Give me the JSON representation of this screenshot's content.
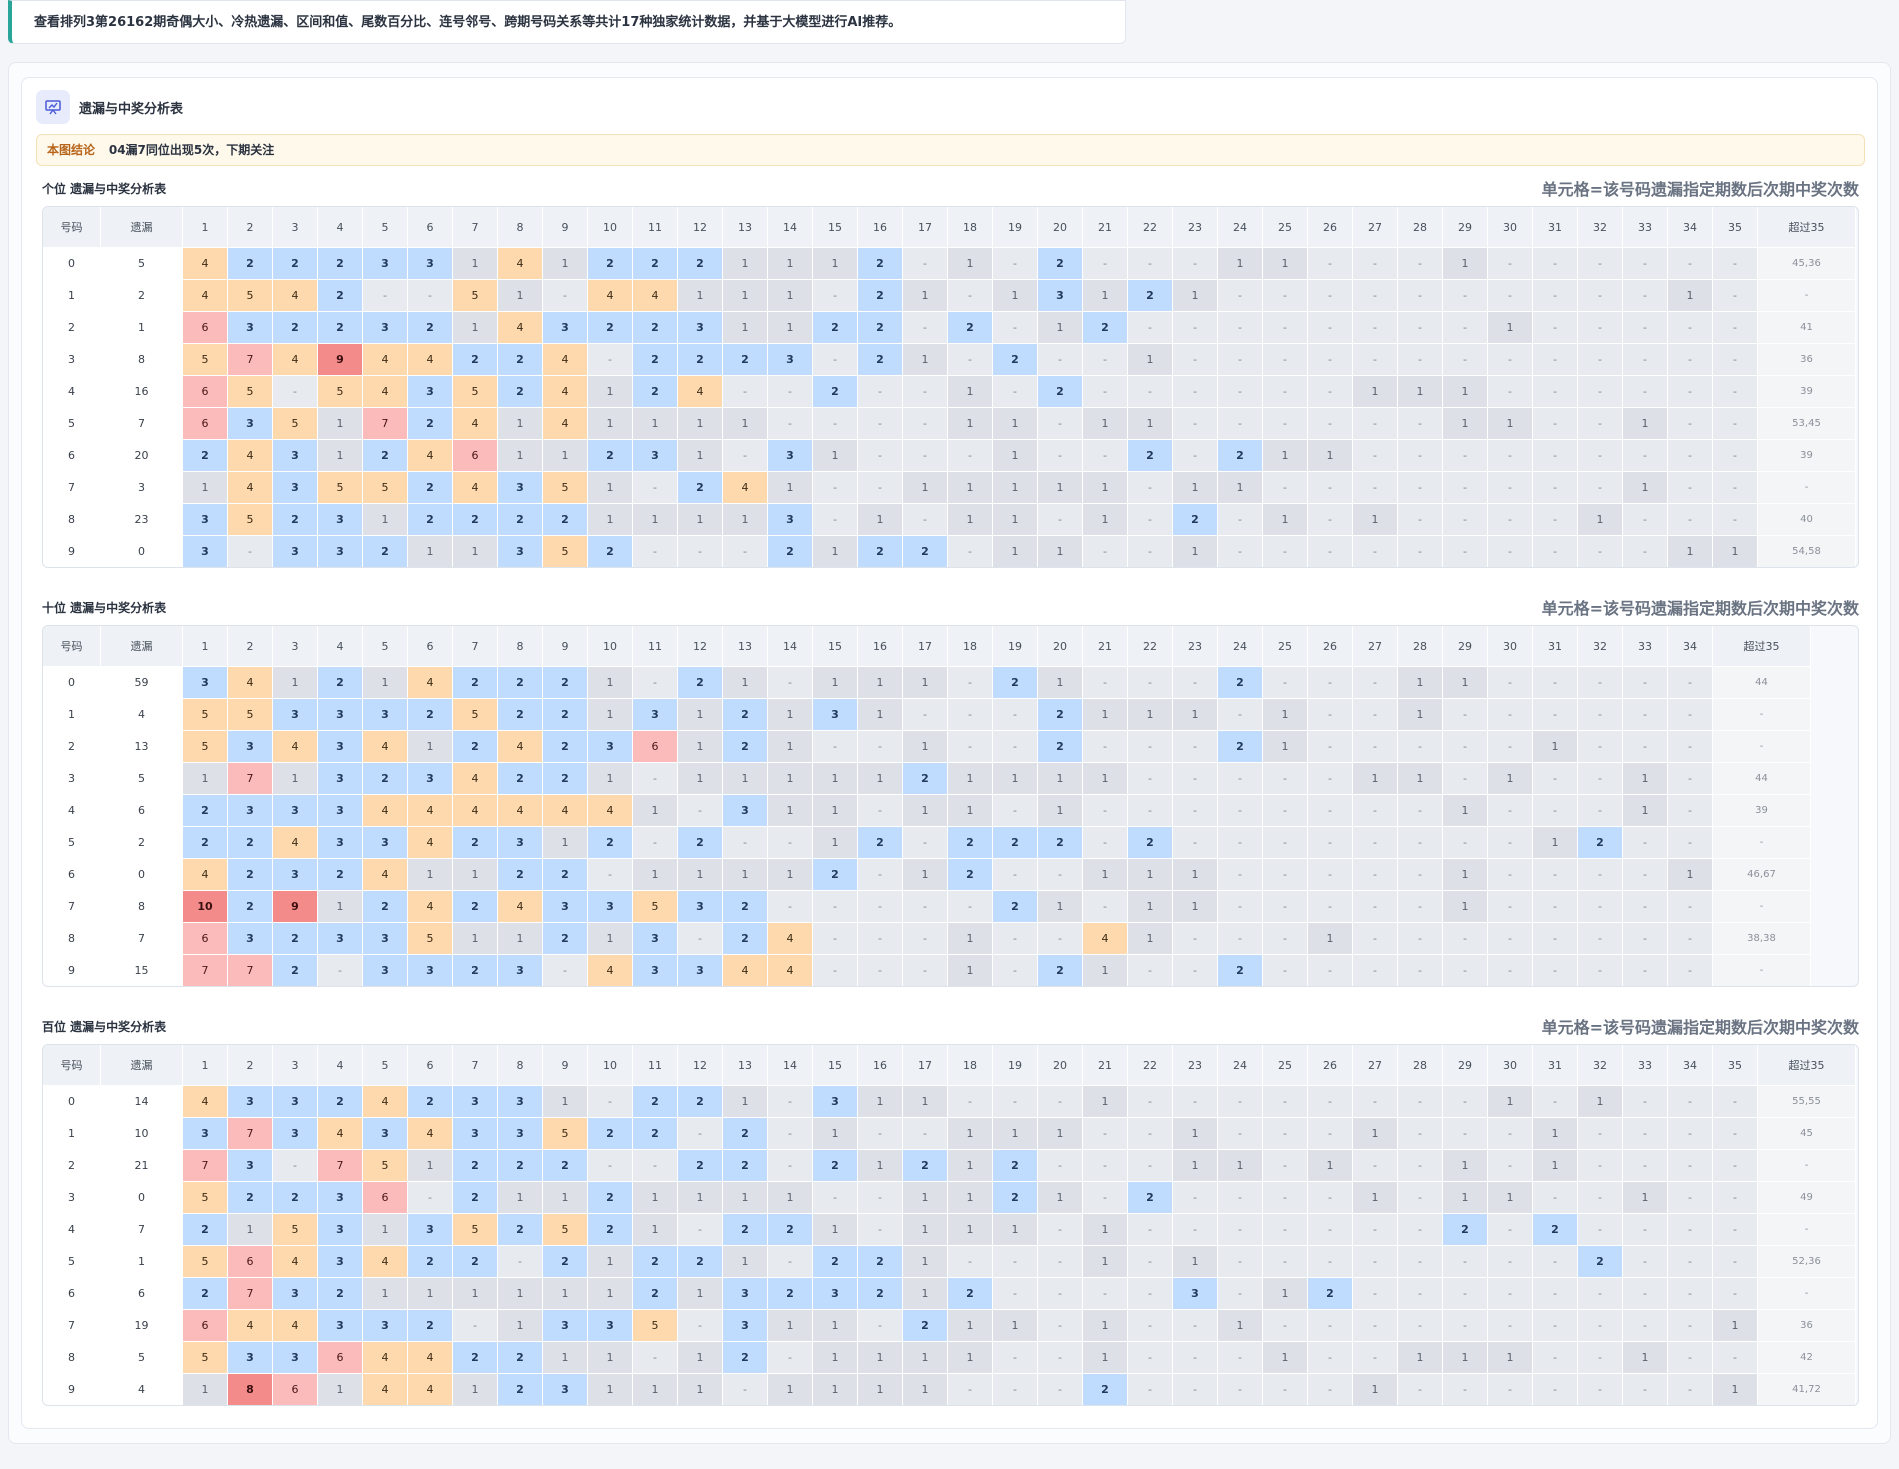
{
  "banner": "查看排列3第26162期奇偶大小、冷热遗漏、区间和值、尾数百分比、连号邻号、跨期号码关系等共计17种独家统计数据，并基于大模型进行AI推荐。",
  "panel": {
    "title": "遗漏与中奖分析表",
    "icon": "presentation-chart-icon",
    "conclusion_tag": "本图结论",
    "conclusion": "04漏7同位出现5次，下期关注"
  },
  "note": "单元格=该号码遗漏指定期数后次期中奖次数",
  "col_code": "号码",
  "col_omit": "遗漏",
  "col_over": "超过35",
  "colors": {
    "blue": "#bfdbfd",
    "orange": "#fdd9ad",
    "pink": "#fbbbbb",
    "red": "#f38b8b",
    "grey": "#e7eaef",
    "accent": "#2aa59a"
  },
  "tables": [
    {
      "title": "个位 遗漏与中奖分析表",
      "cols": 35,
      "rows": [
        {
          "code": "0",
          "omit": "5",
          "over": "45,36",
          "cells": "4,2,2,2,3,3,1,4,1,2,2,2,1,1,1,2,-,1,-,2,-,-,-,1,1,-,-,-,1,-,-,-,-,-,-"
        },
        {
          "code": "1",
          "omit": "2",
          "over": "-",
          "cells": "4,5,4,2,-,-,5,1,-,4,4,1,1,1,-,2,1,-,1,3,1,2,1,-,-,-,-,-,-,-,-,-,-,1,-"
        },
        {
          "code": "2",
          "omit": "1",
          "over": "41",
          "cells": "6,3,2,2,3,2,1,4,3,2,2,3,1,1,2,2,-,2,-,1,2,-,-,-,-,-,-,-,-,1,-,-,-,-,-"
        },
        {
          "code": "3",
          "omit": "8",
          "over": "36",
          "cells": "5,7,4,9,4,4,2,2,4,-,2,2,2,3,-,2,1,-,2,-,-,1,-,-,-,-,-,-,-,-,-,-,-,-,-"
        },
        {
          "code": "4",
          "omit": "16",
          "over": "39",
          "cells": "6,5,-,5,4,3,5,2,4,1,2,4,-,-,2,-,-,1,-,2,-,-,-,-,-,-,1,1,1,-,-,-,-,-,-"
        },
        {
          "code": "5",
          "omit": "7",
          "over": "53,45",
          "cells": "6,3,5,1,7,2,4,1,4,1,1,1,1,-,-,-,-,1,1,-,1,1,-,-,-,-,-,-,1,1,-,-,1,-,-"
        },
        {
          "code": "6",
          "omit": "20",
          "over": "39",
          "cells": "2,4,3,1,2,4,6,1,1,2,3,1,-,3,1,-,-,-,1,-,-,2,-,2,1,1,-,-,-,-,-,-,-,-,-"
        },
        {
          "code": "7",
          "omit": "3",
          "over": "-",
          "cells": "1,4,3,5,5,2,4,3,5,1,-,2,4,1,-,-,1,1,1,1,1,-,1,1,-,-,-,-,-,-,-,-,1,-,-"
        },
        {
          "code": "8",
          "omit": "23",
          "over": "40",
          "cells": "3,5,2,3,1,2,2,2,2,1,1,1,1,3,-,1,-,1,1,-,1,-,2,-,1,-,1,-,-,-,-,1,-,-,-"
        },
        {
          "code": "9",
          "omit": "0",
          "over": "54,58",
          "cells": "3,-,3,3,2,1,1,3,5,2,-,-,-,2,1,2,2,-,1,1,-,-,1,-,-,-,-,-,-,-,-,-,-,1,1"
        }
      ]
    },
    {
      "title": "十位 遗漏与中奖分析表",
      "cols": 34,
      "rows": [
        {
          "code": "0",
          "omit": "59",
          "over": "44",
          "cells": "3,4,1,2,1,4,2,2,2,1,-,2,1,-,1,1,1,-,2,1,-,-,-,2,-,-,-,1,1,-,-,-,-,-"
        },
        {
          "code": "1",
          "omit": "4",
          "over": "-",
          "cells": "5,5,3,3,3,2,5,2,2,1,3,1,2,1,3,1,-,-,-,2,1,1,1,-,1,-,-,1,-,-,-,-,-,-"
        },
        {
          "code": "2",
          "omit": "13",
          "over": "-",
          "cells": "5,3,4,3,4,1,2,4,2,3,6,1,2,1,-,-,1,-,-,2,-,-,-,2,1,-,-,-,-,-,1,-,-,-"
        },
        {
          "code": "3",
          "omit": "5",
          "over": "44",
          "cells": "1,7,1,3,2,3,4,2,2,1,-,1,1,1,1,1,2,1,1,1,1,-,-,-,-,-,1,1,-,1,-,-,1,-"
        },
        {
          "code": "4",
          "omit": "6",
          "over": "39",
          "cells": "2,3,3,3,4,4,4,4,4,4,1,-,3,1,1,-,1,1,-,1,-,-,-,-,-,-,-,-,1,-,-,-,1,-"
        },
        {
          "code": "5",
          "omit": "2",
          "over": "-",
          "cells": "2,2,4,3,3,4,2,3,1,2,-,2,-,-,1,2,-,2,2,2,-,2,-,-,-,-,-,-,-,-,1,2,-,-"
        },
        {
          "code": "6",
          "omit": "0",
          "over": "46,67",
          "cells": "4,2,3,2,4,1,1,2,2,-,1,1,1,1,2,-,1,2,-,-,1,1,1,-,-,-,-,-,1,-,-,-,-,1"
        },
        {
          "code": "7",
          "omit": "8",
          "over": "-",
          "cells": "10,2,9,1,2,4,2,4,3,3,5,3,2,-,-,-,-,-,2,1,-,1,1,-,-,-,-,-,1,-,-,-,-,-"
        },
        {
          "code": "8",
          "omit": "7",
          "over": "38,38",
          "cells": "6,3,2,3,3,5,1,1,2,1,3,-,2,4,-,-,-,1,-,-,4,1,-,-,-,1,-,-,-,-,-,-,-,-"
        },
        {
          "code": "9",
          "omit": "15",
          "over": "-",
          "cells": "7,7,2,-,3,3,2,3,-,4,3,3,4,4,-,-,-,1,-,2,1,-,-,2,-,-,-,-,-,-,-,-,-,-"
        }
      ]
    },
    {
      "title": "百位 遗漏与中奖分析表",
      "cols": 35,
      "rows": [
        {
          "code": "0",
          "omit": "14",
          "over": "55,55",
          "cells": "4,3,3,2,4,2,3,3,1,-,2,2,1,-,3,1,1,-,-,-,1,-,-,-,-,-,-,-,-,1,-,1,-,-,-"
        },
        {
          "code": "1",
          "omit": "10",
          "over": "45",
          "cells": "3,7,3,4,3,4,3,3,5,2,2,-,2,-,1,-,-,1,1,1,-,-,1,-,-,-,1,-,-,-,1,-,-,-,-"
        },
        {
          "code": "2",
          "omit": "21",
          "over": "-",
          "cells": "7,3,-,7,5,1,2,2,2,-,-,2,2,-,2,1,2,1,2,-,-,-,1,1,-,1,-,-,1,-,1,-,-,-,-"
        },
        {
          "code": "3",
          "omit": "0",
          "over": "49",
          "cells": "5,2,2,3,6,-,2,1,1,2,1,1,1,1,-,-,1,1,2,1,-,2,-,-,-,-,1,-,1,1,-,-,1,-,-"
        },
        {
          "code": "4",
          "omit": "7",
          "over": "-",
          "cells": "2,1,5,3,1,3,5,2,5,2,1,-,2,2,1,-,1,1,1,-,1,-,-,-,-,-,-,-,2,-,2,-,-,-,-"
        },
        {
          "code": "5",
          "omit": "1",
          "over": "52,36",
          "cells": "5,6,4,3,4,2,2,-,2,1,2,2,1,-,2,2,1,-,-,-,1,-,1,-,-,-,-,-,-,-,-,2,-,-,-"
        },
        {
          "code": "6",
          "omit": "6",
          "over": "-",
          "cells": "2,7,3,2,1,1,1,1,1,1,2,1,3,2,3,2,1,2,-,-,-,-,3,-,1,2,-,-,-,-,-,-,-,-,-"
        },
        {
          "code": "7",
          "omit": "19",
          "over": "36",
          "cells": "6,4,4,3,3,2,-,1,3,3,5,-,3,1,1,-,2,1,1,-,1,-,-,1,-,-,-,-,-,-,-,-,-,-,1"
        },
        {
          "code": "8",
          "omit": "5",
          "over": "42",
          "cells": "5,3,3,6,4,4,2,2,1,1,-,1,2,-,1,1,1,1,-,-,1,-,-,-,1,-,-,1,1,1,-,-,1,-,-"
        },
        {
          "code": "9",
          "omit": "4",
          "over": "41,72",
          "cells": "1,8,6,1,4,4,1,2,3,1,1,1,-,1,1,1,1,-,-,-,2,-,-,-,-,-,1,-,-,-,-,-,-,-,1"
        }
      ]
    }
  ]
}
